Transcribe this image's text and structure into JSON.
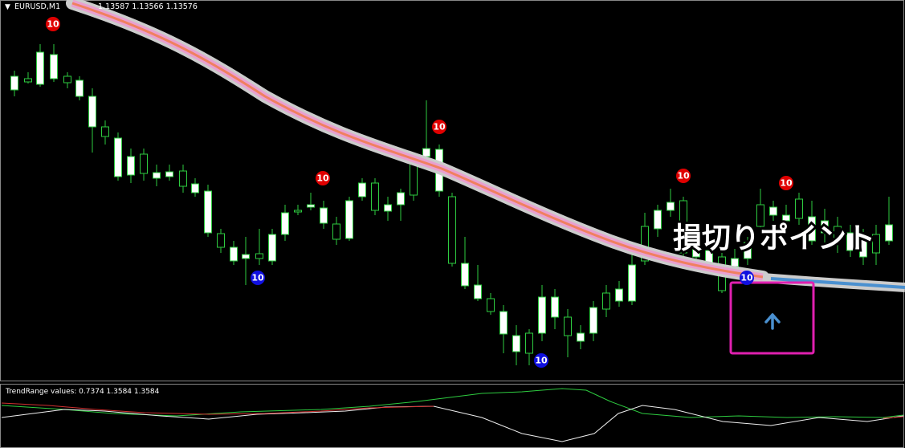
{
  "header": {
    "symbol": "EURUSD,M1",
    "prices": "1.13587 1.13566 1.13576"
  },
  "sell_signals": [
    "10",
    "10",
    "10",
    "10",
    "10"
  ],
  "buy_signals": [
    "10",
    "10",
    "10"
  ],
  "annotation": "損切りポイント",
  "indicator": {
    "label": "TrendRange values: 0.7374 1.3584 1.3584"
  }
}
